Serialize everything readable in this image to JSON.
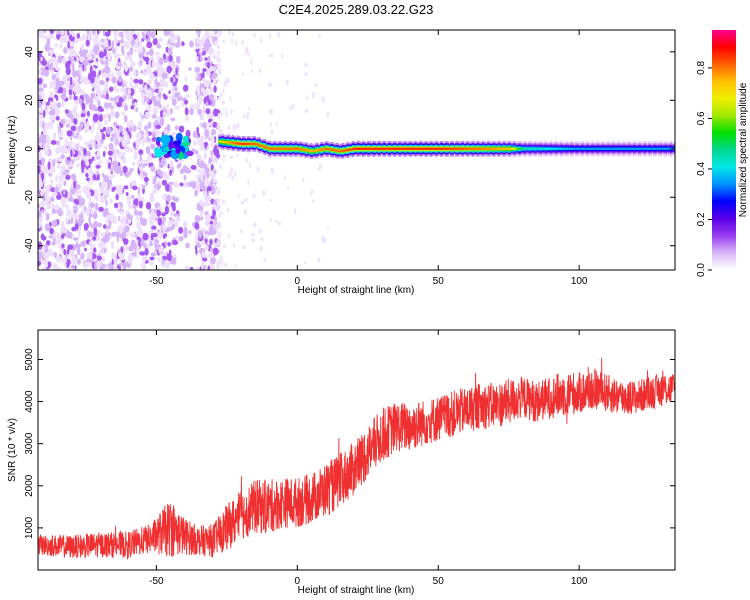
{
  "title": "C2E4.2025.289.03.22.G23",
  "chart_data": [
    {
      "type": "heatmap",
      "xlabel": "Height of straight line (km)",
      "ylabel": "Frequency (Hz)",
      "xlim": [
        -92,
        134
      ],
      "ylim": [
        -50,
        49
      ],
      "xticks": [
        -50,
        0,
        50,
        100
      ],
      "yticks": [
        -40,
        -20,
        0,
        20,
        40
      ],
      "colorbar": {
        "label": "Normalized spectral amplitude",
        "range": [
          0,
          0.95
        ],
        "ticks": [
          0.0,
          0.2,
          0.4,
          0.6,
          0.8
        ],
        "colors": [
          "#ffffff",
          "#d8b8f8",
          "#9a3cf0",
          "#5a00e8",
          "#0000ff",
          "#0090ff",
          "#00e8e8",
          "#00d890",
          "#00e000",
          "#a0e800",
          "#f0f000",
          "#ffc000",
          "#ff6000",
          "#ff0000",
          "#ff0090"
        ]
      },
      "features": [
        {
          "name": "noise",
          "x_range": [
            -92,
            -28
          ],
          "y_range": [
            -50,
            49
          ],
          "amplitude": 0.05
        },
        {
          "name": "blob",
          "x_range": [
            -50,
            -38
          ],
          "y_center": 1,
          "amplitude": 0.35
        },
        {
          "name": "signal-line",
          "x": [
            -28,
            -20,
            -15,
            -10,
            0,
            5,
            10,
            15,
            20,
            50,
            75,
            80,
            100,
            134
          ],
          "y": [
            3,
            2,
            2,
            0,
            0,
            -1,
            0,
            -1,
            0,
            0,
            0,
            0,
            0,
            0
          ],
          "amplitude": [
            0.7,
            0.85,
            0.8,
            0.8,
            0.8,
            0.75,
            0.8,
            0.8,
            0.85,
            0.85,
            0.75,
            0.45,
            0.35,
            0.35
          ]
        }
      ]
    },
    {
      "type": "line",
      "xlabel": "Height of straight line (km)",
      "ylabel": "SNR (10 * v/v)",
      "xlim": [
        -92,
        134
      ],
      "ylim": [
        0,
        5700
      ],
      "xticks": [
        -50,
        0,
        50,
        100
      ],
      "yticks": [
        1000,
        2000,
        3000,
        4000,
        5000
      ],
      "color": "#f03030",
      "series": [
        {
          "x": [
            -92,
            -80,
            -70,
            -60,
            -52,
            -45,
            -40,
            -35,
            -30,
            -25,
            -20,
            -15,
            -10,
            -5,
            0,
            5,
            10,
            15,
            20,
            25,
            30,
            35,
            40,
            45,
            50,
            55,
            60,
            65,
            70,
            75,
            80,
            85,
            90,
            95,
            100,
            105,
            110,
            115,
            120,
            125,
            130,
            134
          ],
          "y": [
            600,
            550,
            600,
            600,
            750,
            1000,
            800,
            700,
            700,
            1000,
            1300,
            1500,
            1500,
            1600,
            1600,
            1700,
            1900,
            2100,
            2400,
            2800,
            3200,
            3400,
            3400,
            3500,
            3600,
            3700,
            3800,
            3900,
            3900,
            4000,
            4100,
            4000,
            4100,
            4200,
            4200,
            4300,
            4200,
            4100,
            4100,
            4200,
            4300,
            4300
          ],
          "spread": [
            250,
            280,
            300,
            320,
            350,
            700,
            450,
            350,
            400,
            550,
            600,
            650,
            650,
            600,
            600,
            600,
            650,
            650,
            650,
            650,
            650,
            600,
            600,
            550,
            550,
            550,
            550,
            550,
            550,
            550,
            500,
            500,
            500,
            550,
            500,
            500,
            450,
            450,
            400,
            400,
            400,
            400
          ]
        }
      ]
    }
  ]
}
